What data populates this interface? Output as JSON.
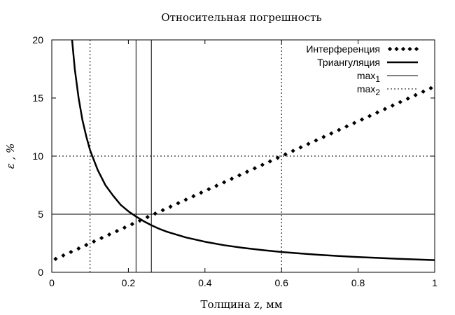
{
  "chart_data": {
    "type": "line",
    "title": "Относительная погрешность",
    "xlabel": "Толщина z, мм",
    "ylabel": "ε , %",
    "xlim": [
      0,
      1
    ],
    "ylim": [
      0,
      20
    ],
    "xticks": [
      0,
      0.2,
      0.4,
      0.6,
      0.8,
      1
    ],
    "xtick_labels": [
      "0",
      "0.2",
      "0.4",
      "0.6",
      "0.8",
      "1"
    ],
    "yticks": [
      0,
      5,
      10,
      15,
      20
    ],
    "ytick_labels": [
      "0",
      "5",
      "10",
      "15",
      "20"
    ],
    "legend_placement": "top-right",
    "grid": false,
    "series": [
      {
        "name": "Интерференция",
        "style": "points",
        "color": "#000000",
        "x": [
          0.01,
          0.03,
          0.05,
          0.07,
          0.09,
          0.11,
          0.13,
          0.15,
          0.17,
          0.19,
          0.21,
          0.23,
          0.25,
          0.27,
          0.29,
          0.31,
          0.33,
          0.35,
          0.37,
          0.39,
          0.41,
          0.43,
          0.45,
          0.47,
          0.49,
          0.51,
          0.53,
          0.55,
          0.57,
          0.59,
          0.61,
          0.63,
          0.65,
          0.67,
          0.69,
          0.71,
          0.73,
          0.75,
          0.77,
          0.79,
          0.81,
          0.83,
          0.85,
          0.87,
          0.89,
          0.91,
          0.93,
          0.95,
          0.97,
          0.99
        ],
        "y": [
          1.15,
          1.45,
          1.75,
          2.05,
          2.35,
          2.65,
          2.95,
          3.25,
          3.55,
          3.85,
          4.15,
          4.45,
          4.75,
          5.05,
          5.35,
          5.65,
          5.95,
          6.25,
          6.55,
          6.85,
          7.15,
          7.45,
          7.75,
          8.05,
          8.35,
          8.65,
          8.95,
          9.25,
          9.55,
          9.85,
          10.15,
          10.45,
          10.75,
          11.05,
          11.35,
          11.65,
          11.95,
          12.25,
          12.55,
          12.85,
          13.15,
          13.45,
          13.75,
          14.05,
          14.35,
          14.65,
          14.95,
          15.25,
          15.55,
          15.85
        ]
      },
      {
        "name": "Триангуляция",
        "style": "line",
        "color": "#000000",
        "x": [
          0.053,
          0.06,
          0.07,
          0.08,
          0.09,
          0.1,
          0.12,
          0.14,
          0.16,
          0.18,
          0.2,
          0.22,
          0.24,
          0.26,
          0.28,
          0.3,
          0.35,
          0.4,
          0.45,
          0.5,
          0.55,
          0.6,
          0.65,
          0.7,
          0.75,
          0.8,
          0.85,
          0.9,
          0.95,
          1.0
        ],
        "y": [
          20.0,
          17.5,
          15.0,
          13.1,
          11.7,
          10.5,
          8.8,
          7.5,
          6.6,
          5.8,
          5.25,
          4.8,
          4.4,
          4.05,
          3.75,
          3.5,
          3.0,
          2.63,
          2.33,
          2.1,
          1.91,
          1.75,
          1.62,
          1.5,
          1.4,
          1.31,
          1.24,
          1.17,
          1.11,
          1.05
        ]
      },
      {
        "name": "max",
        "name_sub": "1",
        "style": "solid-thin",
        "color": "#000000",
        "hlines": [
          5
        ],
        "vlines": [
          0.22,
          0.26
        ]
      },
      {
        "name": "max",
        "name_sub": "2",
        "style": "dotted",
        "color": "#000000",
        "hlines": [
          10
        ],
        "vlines": [
          0.1,
          0.6
        ]
      }
    ]
  }
}
